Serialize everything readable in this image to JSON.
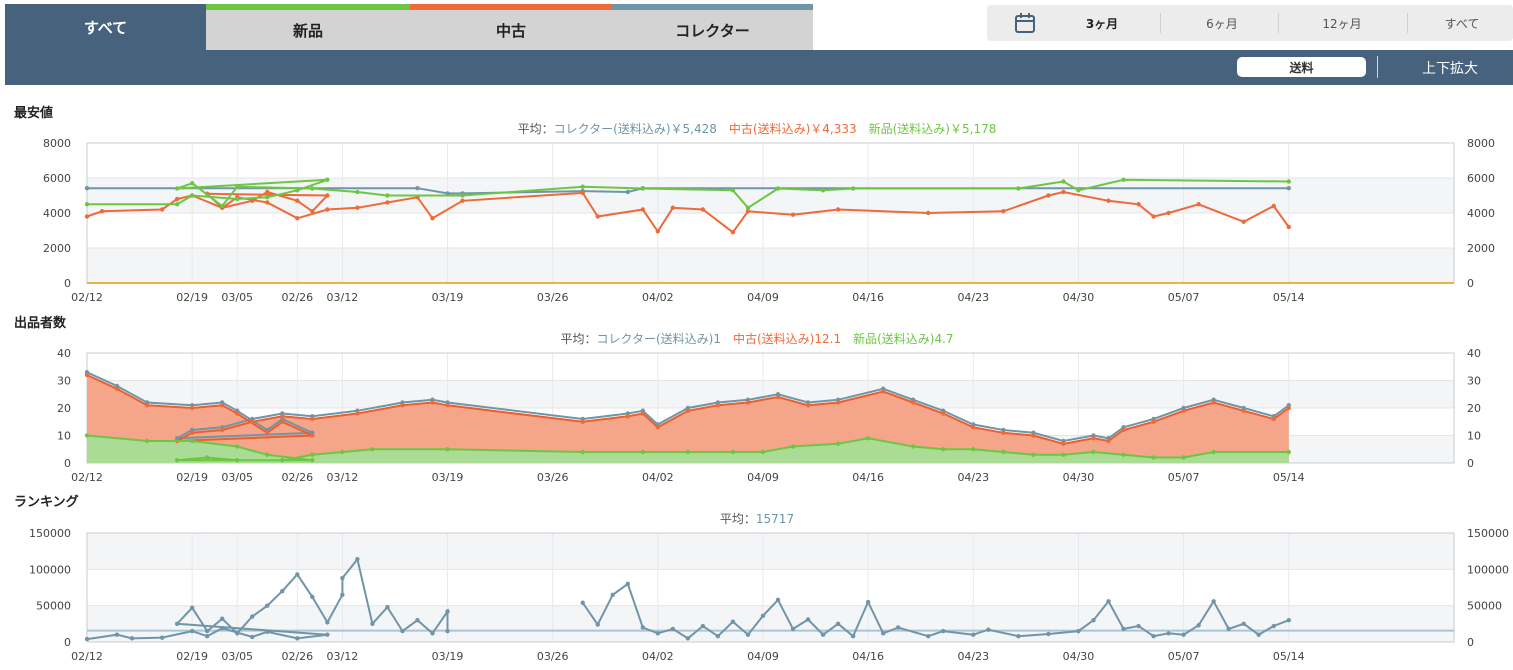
{
  "tabs": {
    "all": "すべて",
    "new": "新品",
    "used": "中古",
    "collector": "コレクター"
  },
  "periods": [
    "3ヶ月",
    "6ヶ月",
    "12ヶ月",
    "すべて"
  ],
  "toolbar": {
    "shipping_label": "送料",
    "zoom_label": "上下拡大"
  },
  "colors": {
    "header": "#46627d",
    "new": "#6cc644",
    "used": "#ee6a3a",
    "collector": "#7095a8",
    "new_fill": "#abdc95",
    "used_fill": "#f4a58a",
    "used_line_dark": "#e9602e"
  },
  "x_dates": [
    "02/12",
    "02/19",
    "02/26",
    "03/05",
    "03/12",
    "03/19",
    "03/26",
    "04/02",
    "04/09",
    "04/16",
    "04/23",
    "04/30",
    "05/07",
    "05/14"
  ],
  "chart_data": [
    {
      "type": "line",
      "title": "最安値",
      "legend_prefix": "平均：",
      "legend": [
        "コレクター(送料込み)￥5,428",
        "中古(送料込み)￥4,333",
        "新品(送料込み)￥5,178"
      ],
      "ylim": [
        0,
        8000
      ],
      "y_ticks": [
        "0",
        "2000",
        "4000",
        "6000",
        "8000"
      ],
      "series": [
        {
          "name": "コレクター(送料込み)",
          "points": [
            [
              "02/12",
              5420
            ],
            [
              "03/17",
              5420
            ],
            [
              "03/19",
              5120
            ],
            [
              "03/20",
              5120
            ],
            [
              "03/28",
              5250
            ],
            [
              "03/31",
              5200
            ],
            [
              "04/01",
              5420
            ],
            [
              "05/14",
              5420
            ]
          ]
        },
        {
          "name": "中古(送料込み)",
          "points": [
            [
              "02/12",
              3800
            ],
            [
              "02/13",
              4100
            ],
            [
              "02/17",
              4200
            ],
            [
              "02/18",
              4800
            ],
            [
              "02/19",
              5000
            ],
            [
              "02/21",
              4300
            ],
            [
              "02/23",
              4700
            ],
            [
              "02/24",
              5200
            ],
            [
              "02/26",
              4700
            ],
            [
              "02/27",
              4100
            ],
            [
              "02/28",
              5000
            ],
            [
              "03/03",
              5100
            ],
            [
              "03/04",
              4300
            ],
            [
              "03/05",
              4900
            ],
            [
              "03/07",
              4600
            ],
            [
              "03/09",
              3700
            ],
            [
              "03/11",
              4200
            ],
            [
              "03/13",
              4300
            ],
            [
              "03/15",
              4600
            ],
            [
              "03/17",
              4900
            ],
            [
              "03/18",
              3700
            ],
            [
              "03/20",
              4700
            ],
            [
              "03/28",
              5150
            ],
            [
              "03/29",
              3800
            ],
            [
              "04/01",
              4200
            ],
            [
              "04/02",
              2950
            ],
            [
              "04/03",
              4300
            ],
            [
              "04/05",
              4200
            ],
            [
              "04/07",
              2900
            ],
            [
              "04/08",
              4100
            ],
            [
              "04/11",
              3900
            ],
            [
              "04/14",
              4200
            ],
            [
              "04/20",
              4000
            ],
            [
              "04/25",
              4100
            ],
            [
              "04/28",
              5000
            ],
            [
              "04/29",
              5200
            ],
            [
              "05/02",
              4700
            ],
            [
              "05/04",
              4500
            ],
            [
              "05/05",
              3800
            ],
            [
              "05/06",
              4000
            ],
            [
              "05/08",
              4500
            ],
            [
              "05/11",
              3500
            ],
            [
              "05/13",
              4400
            ],
            [
              "05/14",
              3200
            ]
          ]
        },
        {
          "name": "新品(送料込み)",
          "points": [
            [
              "02/12",
              4500
            ],
            [
              "02/18",
              4500
            ],
            [
              "02/19",
              5000
            ],
            [
              "02/22",
              4800
            ],
            [
              "02/24",
              4900
            ],
            [
              "02/26",
              5300
            ],
            [
              "02/28",
              5900
            ],
            [
              "03/01",
              5400
            ],
            [
              "03/02",
              5700
            ],
            [
              "03/04",
              4400
            ],
            [
              "03/05",
              5500
            ],
            [
              "03/10",
              5400
            ],
            [
              "03/13",
              5200
            ],
            [
              "03/15",
              5000
            ],
            [
              "03/20",
              5000
            ],
            [
              "03/28",
              5500
            ],
            [
              "04/01",
              5400
            ],
            [
              "04/07",
              5300
            ],
            [
              "04/08",
              4300
            ],
            [
              "04/10",
              5400
            ],
            [
              "04/13",
              5300
            ],
            [
              "04/15",
              5400
            ],
            [
              "04/26",
              5400
            ],
            [
              "04/29",
              5800
            ],
            [
              "04/30",
              5300
            ],
            [
              "05/03",
              5900
            ],
            [
              "05/14",
              5800
            ]
          ]
        }
      ]
    },
    {
      "type": "area",
      "title": "出品者数",
      "legend_prefix": "平均：",
      "legend": [
        "コレクター(送料込み)1",
        "中古(送料込み)12.1",
        "新品(送料込み)4.7"
      ],
      "ylim": [
        0,
        40
      ],
      "y_ticks": [
        "0",
        "10",
        "20",
        "30",
        "40"
      ],
      "series": [
        {
          "name": "中古(送料込み)",
          "points": [
            [
              "02/12",
              32
            ],
            [
              "02/14",
              27
            ],
            [
              "02/16",
              21
            ],
            [
              "02/19",
              20
            ],
            [
              "02/21",
              21
            ],
            [
              "02/22",
              18
            ],
            [
              "02/24",
              11
            ],
            [
              "02/25",
              15
            ],
            [
              "02/27",
              10
            ],
            [
              "03/01",
              8
            ],
            [
              "03/02",
              11
            ],
            [
              "03/04",
              12
            ],
            [
              "03/06",
              15
            ],
            [
              "03/08",
              17
            ],
            [
              "03/10",
              16
            ],
            [
              "03/13",
              18
            ],
            [
              "03/16",
              21
            ],
            [
              "03/18",
              22
            ],
            [
              "03/19",
              21
            ],
            [
              "03/28",
              15
            ],
            [
              "03/31",
              17
            ],
            [
              "04/01",
              18
            ],
            [
              "04/02",
              13
            ],
            [
              "04/04",
              19
            ],
            [
              "04/06",
              21
            ],
            [
              "04/08",
              22
            ],
            [
              "04/10",
              24
            ],
            [
              "04/12",
              21
            ],
            [
              "04/14",
              22
            ],
            [
              "04/17",
              26
            ],
            [
              "04/19",
              22
            ],
            [
              "04/21",
              18
            ],
            [
              "04/23",
              13
            ],
            [
              "04/25",
              11
            ],
            [
              "04/27",
              10
            ],
            [
              "04/29",
              7
            ],
            [
              "05/01",
              9
            ],
            [
              "05/02",
              8
            ],
            [
              "05/03",
              12
            ],
            [
              "05/05",
              15
            ],
            [
              "05/07",
              19
            ],
            [
              "05/09",
              22
            ],
            [
              "05/11",
              19
            ],
            [
              "05/13",
              16
            ],
            [
              "05/14",
              20
            ]
          ]
        },
        {
          "name": "新品(送料込み)",
          "points": [
            [
              "02/12",
              10
            ],
            [
              "02/16",
              8
            ],
            [
              "02/19",
              8
            ],
            [
              "02/22",
              6
            ],
            [
              "02/24",
              3
            ],
            [
              "02/27",
              1
            ],
            [
              "03/01",
              1
            ],
            [
              "03/03",
              2
            ],
            [
              "03/05",
              1
            ],
            [
              "03/08",
              1
            ],
            [
              "03/10",
              3
            ],
            [
              "03/12",
              4
            ],
            [
              "03/14",
              5
            ],
            [
              "03/19",
              5
            ],
            [
              "03/28",
              4
            ],
            [
              "04/01",
              4
            ],
            [
              "04/04",
              4
            ],
            [
              "04/07",
              4
            ],
            [
              "04/09",
              4
            ],
            [
              "04/11",
              6
            ],
            [
              "04/14",
              7
            ],
            [
              "04/16",
              9
            ],
            [
              "04/19",
              6
            ],
            [
              "04/21",
              5
            ],
            [
              "04/23",
              5
            ],
            [
              "04/25",
              4
            ],
            [
              "04/27",
              3
            ],
            [
              "04/29",
              3
            ],
            [
              "05/01",
              4
            ],
            [
              "05/03",
              3
            ],
            [
              "05/05",
              2
            ],
            [
              "05/07",
              2
            ],
            [
              "05/09",
              4
            ],
            [
              "05/14",
              4
            ]
          ]
        },
        {
          "name": "コレクター(送料込み)",
          "points": [
            [
              "02/12",
              1
            ],
            [
              "05/14",
              1
            ]
          ]
        }
      ]
    },
    {
      "type": "line",
      "title": "ランキング",
      "legend_prefix": "平均：",
      "legend": [
        "15717"
      ],
      "ylim": [
        0,
        150000
      ],
      "y_ticks": [
        "0",
        "50000",
        "100000",
        "150000"
      ],
      "average": 15717,
      "series": [
        {
          "name": "",
          "segments": [
            [
              [
                "02/12",
                4000
              ],
              [
                "02/14",
                10000
              ],
              [
                "02/15",
                5000
              ],
              [
                "02/17",
                6000
              ],
              [
                "02/19",
                15000
              ],
              [
                "02/20",
                8000
              ],
              [
                "02/21",
                19000
              ],
              [
                "02/23",
                7000
              ],
              [
                "02/24",
                14000
              ],
              [
                "02/26",
                5000
              ],
              [
                "02/28",
                10000
              ],
              [
                "03/01",
                25000
              ],
              [
                "03/02",
                47000
              ],
              [
                "03/03",
                15000
              ],
              [
                "03/04",
                32000
              ],
              [
                "03/05",
                12000
              ],
              [
                "03/06",
                35000
              ],
              [
                "03/07",
                50000
              ],
              [
                "03/08",
                70000
              ],
              [
                "03/09",
                93000
              ],
              [
                "03/10",
                62000
              ],
              [
                "03/11",
                27000
              ],
              [
                "03/12",
                65000
              ],
              [
                "03/12",
                88000
              ],
              [
                "03/13",
                114000
              ],
              [
                "03/14",
                25000
              ],
              [
                "03/15",
                48000
              ],
              [
                "03/16",
                15000
              ],
              [
                "03/17",
                30000
              ],
              [
                "03/18",
                12000
              ],
              [
                "03/19",
                42000
              ],
              [
                "03/19",
                15000
              ]
            ],
            [
              [
                "03/28",
                54000
              ],
              [
                "03/29",
                24000
              ],
              [
                "03/30",
                65000
              ],
              [
                "03/31",
                80000
              ],
              [
                "04/01",
                20000
              ],
              [
                "04/02",
                12000
              ],
              [
                "04/03",
                18000
              ],
              [
                "04/04",
                5000
              ],
              [
                "04/05",
                22000
              ],
              [
                "04/06",
                8000
              ],
              [
                "04/07",
                28000
              ],
              [
                "04/08",
                10000
              ],
              [
                "04/09",
                36000
              ],
              [
                "04/10",
                58000
              ],
              [
                "04/11",
                18000
              ],
              [
                "04/12",
                31000
              ],
              [
                "04/13",
                10000
              ],
              [
                "04/14",
                25000
              ],
              [
                "04/15",
                8000
              ],
              [
                "04/16",
                55000
              ],
              [
                "04/17",
                12000
              ],
              [
                "04/18",
                20000
              ],
              [
                "04/20",
                8000
              ],
              [
                "04/21",
                15000
              ],
              [
                "04/23",
                10000
              ],
              [
                "04/24",
                17000
              ],
              [
                "04/26",
                8000
              ],
              [
                "04/28",
                11000
              ],
              [
                "04/30",
                15000
              ],
              [
                "05/01",
                30000
              ],
              [
                "05/02",
                56000
              ],
              [
                "05/03",
                18000
              ],
              [
                "05/04",
                22000
              ],
              [
                "05/05",
                8000
              ],
              [
                "05/06",
                12000
              ],
              [
                "05/07",
                10000
              ],
              [
                "05/08",
                23000
              ],
              [
                "05/09",
                56000
              ],
              [
                "05/10",
                18000
              ],
              [
                "05/11",
                25000
              ],
              [
                "05/12",
                10000
              ],
              [
                "05/13",
                22000
              ],
              [
                "05/14",
                30000
              ]
            ]
          ]
        }
      ]
    }
  ]
}
